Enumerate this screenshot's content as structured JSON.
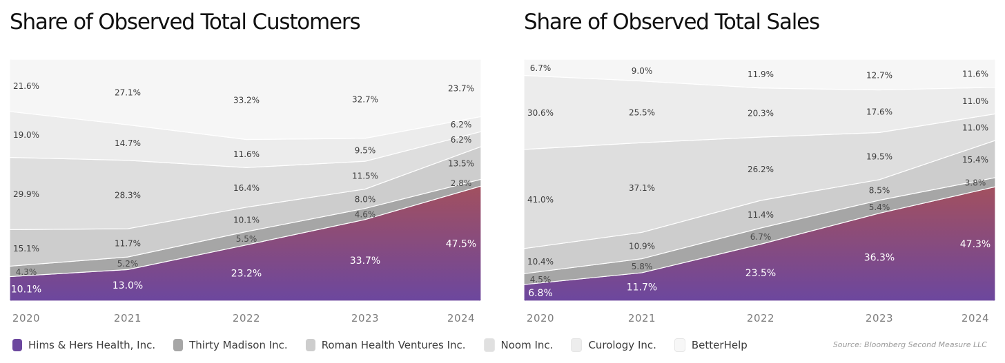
{
  "chart_data": [
    {
      "type": "area",
      "title": "Share of Observed Total Customers",
      "x": [
        "2020",
        "2021",
        "2022",
        "2023",
        "2024"
      ],
      "stacked": true,
      "percent": true,
      "ylim": [
        0,
        100
      ],
      "series": [
        {
          "name": "Hims & Hers Health, Inc.",
          "values": [
            10.1,
            13.0,
            23.2,
            33.7,
            47.5
          ]
        },
        {
          "name": "Thirty Madison Inc.",
          "values": [
            4.3,
            5.2,
            5.5,
            4.6,
            2.8
          ]
        },
        {
          "name": "Roman Health Ventures Inc.",
          "values": [
            15.1,
            11.7,
            10.1,
            8.0,
            13.5
          ]
        },
        {
          "name": "Noom Inc.",
          "values": [
            29.9,
            28.3,
            16.4,
            11.5,
            6.2
          ]
        },
        {
          "name": "Curology Inc.",
          "values": [
            19.0,
            14.7,
            11.6,
            9.5,
            6.2
          ]
        },
        {
          "name": "BetterHelp",
          "values": [
            21.6,
            27.1,
            33.2,
            32.7,
            23.7
          ]
        }
      ]
    },
    {
      "type": "area",
      "title": "Share of Observed Total Sales",
      "x": [
        "2020",
        "2021",
        "2022",
        "2023",
        "2024"
      ],
      "stacked": true,
      "percent": true,
      "ylim": [
        0,
        100
      ],
      "series": [
        {
          "name": "Hims & Hers Health, Inc.",
          "values": [
            6.8,
            11.7,
            23.5,
            36.3,
            47.3
          ]
        },
        {
          "name": "Thirty Madison Inc.",
          "values": [
            4.5,
            5.8,
            6.7,
            5.4,
            3.8
          ]
        },
        {
          "name": "Roman Health Ventures Inc.",
          "values": [
            10.4,
            10.9,
            11.4,
            8.5,
            15.4
          ]
        },
        {
          "name": "Noom Inc.",
          "values": [
            41.0,
            37.1,
            26.2,
            19.5,
            11.0
          ]
        },
        {
          "name": "Curology Inc.",
          "values": [
            30.6,
            25.5,
            20.3,
            17.6,
            11.0
          ]
        },
        {
          "name": "BetterHelp",
          "values": [
            6.7,
            9.0,
            11.9,
            12.7,
            11.6
          ]
        }
      ]
    }
  ],
  "colors": {
    "Hims & Hers Health, Inc.": "#6c479e",
    "Hims & Hers Health, Inc. top": "#a2505f",
    "Thirty Madison Inc.": "#a6a6a6",
    "Roman Health Ventures Inc.": "#cdcdcd",
    "Noom Inc.": "#dedede",
    "Curology Inc.": "#ececec",
    "BetterHelp": "#f6f6f6"
  },
  "legend": {
    "items": [
      {
        "label": "Hims & Hers Health, Inc.",
        "color": "#6c479e"
      },
      {
        "label": "Thirty Madison Inc.",
        "color": "#a6a6a6"
      },
      {
        "label": "Roman Health Ventures Inc.",
        "color": "#cdcdcd"
      },
      {
        "label": "Noom Inc.",
        "color": "#e0e0e0"
      },
      {
        "label": "Curology Inc.",
        "color": "#ededed"
      },
      {
        "label": "BetterHelp",
        "color": "#f7f7f7"
      }
    ]
  },
  "source": "Source: Bloomberg Second Measure LLC"
}
